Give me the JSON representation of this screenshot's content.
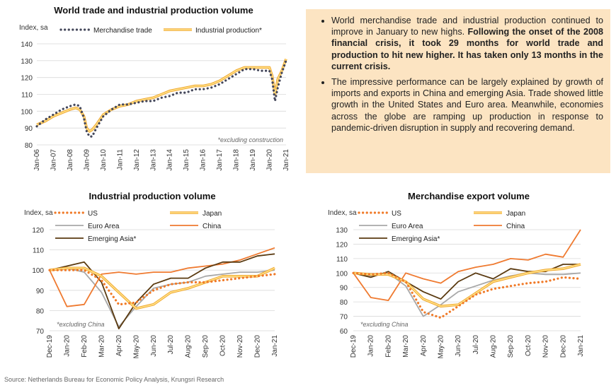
{
  "panel": {
    "bullets": [
      {
        "plain": "World merchandise trade and industrial production continued to improve in January to new highs. ",
        "bold": "Following the onset of the 2008 financial crisis, it took 29 months for world trade and production to hit new higher. It has taken only 13 months in the current crisis."
      },
      {
        "plain": "The impressive performance can be largely explained by growth of imports and exports in China and emerging Asia. Trade showed little growth in the United States and Euro area. Meanwhile, economies across the globe are ramping up production in response to pandemic-driven disruption in supply and recovering demand.",
        "bold": ""
      }
    ]
  },
  "source": "Source: Netherlands Bureau for Economic Policy Analysis, Krungsri Research",
  "colors": {
    "merch": "#44475a",
    "ip_fill": "#ffe28a",
    "ip_edge": "#f0a830",
    "us": "#f07a28",
    "japan": "#f5b730",
    "euro": "#a8a8a8",
    "china": "#ef7a30",
    "emasia": "#5a3a10",
    "panel_bg": "#fce4c2"
  },
  "chart_data": [
    {
      "type": "line",
      "title": "World trade and industrial production volume",
      "ylabel": "Index, sa",
      "note": "*excluding construction",
      "ylim": [
        80,
        140
      ],
      "yticks": [
        80,
        90,
        100,
        110,
        120,
        130,
        140
      ],
      "xticks": [
        "Jan-06",
        "Jan-07",
        "Jan-08",
        "Jan-09",
        "Jan-10",
        "Jan-11",
        "Jan-12",
        "Jan-13",
        "Jan-14",
        "Jan-15",
        "Jan-16",
        "Jan-17",
        "Jan-18",
        "Jan-19",
        "Jan-20",
        "Jan-21"
      ],
      "grid": true,
      "legend_position": "top",
      "series": [
        {
          "name": "Merchandise trade",
          "style": "dotted",
          "points": [
            [
              "Jan-06",
              91
            ],
            [
              "Jul-06",
              95
            ],
            [
              "Jan-07",
              98
            ],
            [
              "Jul-07",
              101
            ],
            [
              "Jan-08",
              103
            ],
            [
              "May-08",
              104
            ],
            [
              "Aug-08",
              103
            ],
            [
              "Nov-08",
              96
            ],
            [
              "Jan-09",
              88
            ],
            [
              "Mar-09",
              85
            ],
            [
              "May-09",
              85
            ],
            [
              "Aug-09",
              90
            ],
            [
              "Jan-10",
              97
            ],
            [
              "Jul-10",
              101
            ],
            [
              "Jan-11",
              104
            ],
            [
              "Jul-11",
              104
            ],
            [
              "Jan-12",
              105
            ],
            [
              "Jul-12",
              106
            ],
            [
              "Jan-13",
              106
            ],
            [
              "Jul-13",
              108
            ],
            [
              "Jan-14",
              109
            ],
            [
              "Jul-14",
              111
            ],
            [
              "Jan-15",
              111
            ],
            [
              "Jul-15",
              113
            ],
            [
              "Jan-16",
              113
            ],
            [
              "Jul-16",
              114
            ],
            [
              "Jan-17",
              116
            ],
            [
              "Jul-17",
              119
            ],
            [
              "Jan-18",
              122
            ],
            [
              "Jul-18",
              125
            ],
            [
              "Jan-19",
              125
            ],
            [
              "Jul-19",
              124
            ],
            [
              "Jan-20",
              124
            ],
            [
              "Mar-20",
              119
            ],
            [
              "May-20",
              106
            ],
            [
              "Jul-20",
              114
            ],
            [
              "Oct-20",
              123
            ],
            [
              "Jan-21",
              130
            ]
          ]
        },
        {
          "name": "Industrial production*",
          "style": "double",
          "points": [
            [
              "Jan-06",
              92
            ],
            [
              "Jul-06",
              94
            ],
            [
              "Jan-07",
              97
            ],
            [
              "Jul-07",
              99
            ],
            [
              "Jan-08",
              101
            ],
            [
              "May-08",
              102
            ],
            [
              "Aug-08",
              101
            ],
            [
              "Nov-08",
              97
            ],
            [
              "Jan-09",
              90
            ],
            [
              "Mar-09",
              88
            ],
            [
              "May-09",
              89
            ],
            [
              "Aug-09",
              92
            ],
            [
              "Jan-10",
              98
            ],
            [
              "Jul-10",
              101
            ],
            [
              "Jan-11",
              103
            ],
            [
              "Jul-11",
              104
            ],
            [
              "Jan-12",
              106
            ],
            [
              "Jul-12",
              107
            ],
            [
              "Jan-13",
              108
            ],
            [
              "Jul-13",
              110
            ],
            [
              "Jan-14",
              112
            ],
            [
              "Jul-14",
              113
            ],
            [
              "Jan-15",
              114
            ],
            [
              "Jul-15",
              115
            ],
            [
              "Jan-16",
              115
            ],
            [
              "Jul-16",
              116
            ],
            [
              "Jan-17",
              118
            ],
            [
              "Jul-17",
              121
            ],
            [
              "Jan-18",
              124
            ],
            [
              "Jul-18",
              126
            ],
            [
              "Jan-19",
              126
            ],
            [
              "Jul-19",
              126
            ],
            [
              "Jan-20",
              126
            ],
            [
              "Mar-20",
              121
            ],
            [
              "May-20",
              110
            ],
            [
              "Jul-20",
              119
            ],
            [
              "Oct-20",
              124
            ],
            [
              "Jan-21",
              131
            ]
          ]
        }
      ]
    },
    {
      "type": "line",
      "title": "Industrial production volume",
      "ylabel": "Index, sa",
      "note": "*excluding China",
      "ylim": [
        70,
        120
      ],
      "yticks": [
        70,
        80,
        90,
        100,
        110,
        120
      ],
      "categories": [
        "Dec-19",
        "Jan-20",
        "Feb-20",
        "Mar-20",
        "Apr-20",
        "May-20",
        "Jun-20",
        "Jul-20",
        "Aug-20",
        "Sep-20",
        "Oct-20",
        "Nov-20",
        "Dec-20",
        "Jan-21"
      ],
      "grid": true,
      "legend_position": "top",
      "series": [
        {
          "name": "US",
          "style": "dotted",
          "values": [
            100,
            100,
            100,
            95,
            83,
            84,
            90,
            93,
            94,
            94,
            95,
            96,
            97,
            98
          ]
        },
        {
          "name": "Japan",
          "style": "double",
          "values": [
            100,
            101,
            101,
            97,
            89,
            81,
            83,
            89,
            91,
            94,
            97,
            97,
            97,
            101
          ]
        },
        {
          "name": "Euro Area",
          "style": "solid",
          "values": [
            100,
            101,
            99,
            89,
            72,
            82,
            91,
            93,
            94,
            97,
            98,
            99,
            99,
            100
          ]
        },
        {
          "name": "China",
          "style": "solid",
          "values": [
            100,
            82,
            83,
            98,
            99,
            98,
            99,
            99,
            101,
            102,
            103,
            105,
            108,
            111
          ]
        },
        {
          "name": "Emerging Asia*",
          "style": "solid",
          "values": [
            100,
            102,
            104,
            94,
            71,
            84,
            93,
            96,
            96,
            101,
            104,
            104,
            107,
            108
          ]
        }
      ]
    },
    {
      "type": "line",
      "title": "Merchandise export volume",
      "ylabel": "Index, sa",
      "note": "*excluding China",
      "ylim": [
        60,
        130
      ],
      "yticks": [
        60,
        70,
        80,
        90,
        100,
        110,
        120,
        130
      ],
      "categories": [
        "Dec-19",
        "Jan-20",
        "Feb-20",
        "Mar-20",
        "Apr-20",
        "May-20",
        "Jun-20",
        "Jul-20",
        "Aug-20",
        "Sep-20",
        "Oct-20",
        "Nov-20",
        "Dec-20",
        "Jan-21"
      ],
      "grid": true,
      "legend_position": "top",
      "series": [
        {
          "name": "US",
          "style": "dotted",
          "values": [
            100,
            99,
            100,
            94,
            73,
            69,
            77,
            85,
            89,
            91,
            93,
            94,
            97,
            96
          ]
        },
        {
          "name": "Japan",
          "style": "double",
          "values": [
            100,
            99,
            99,
            94,
            82,
            77,
            78,
            86,
            94,
            97,
            100,
            102,
            103,
            106
          ]
        },
        {
          "name": "Euro Area",
          "style": "solid",
          "values": [
            100,
            98,
            100,
            91,
            70,
            78,
            87,
            91,
            95,
            98,
            100,
            99,
            99,
            100
          ]
        },
        {
          "name": "China",
          "style": "solid",
          "values": [
            100,
            83,
            81,
            100,
            96,
            93,
            101,
            104,
            106,
            110,
            109,
            113,
            111,
            130
          ]
        },
        {
          "name": "Emerging Asia*",
          "style": "solid",
          "values": [
            100,
            97,
            101,
            94,
            87,
            82,
            94,
            100,
            96,
            103,
            101,
            101,
            106,
            106
          ]
        }
      ]
    }
  ]
}
